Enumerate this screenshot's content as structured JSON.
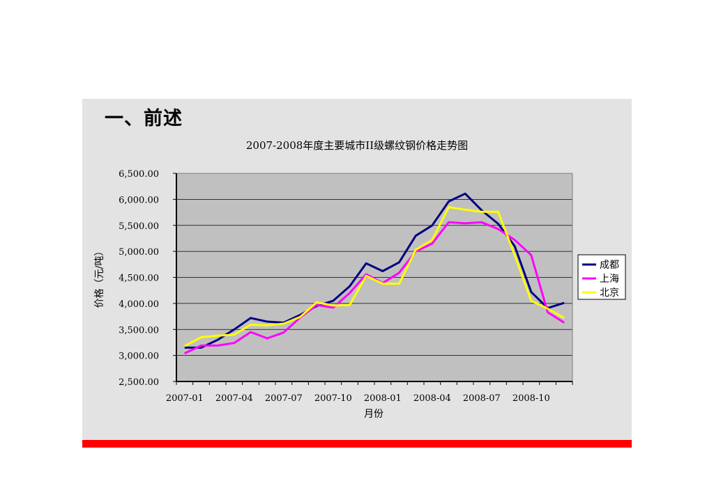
{
  "slide": {
    "section_title": "一、前述"
  },
  "chart_data": {
    "type": "line",
    "title": "2007-2008年度主要城市II级螺纹钢价格走势图",
    "xlabel": "月份",
    "ylabel": "价格（元/吨）",
    "ylim": [
      2500,
      6500
    ],
    "yticks": [
      2500,
      3000,
      3500,
      4000,
      4500,
      5000,
      5500,
      6000,
      6500
    ],
    "ytick_labels": [
      "2,500.00",
      "3,000.00",
      "3,500.00",
      "4,000.00",
      "4,500.00",
      "5,000.00",
      "5,500.00",
      "6,000.00",
      "6,500.00"
    ],
    "x_tick_labels": [
      {
        "index": 0,
        "label": "2007-01"
      },
      {
        "index": 3,
        "label": "2007-04"
      },
      {
        "index": 6,
        "label": "2007-07"
      },
      {
        "index": 9,
        "label": "2007-10"
      },
      {
        "index": 12,
        "label": "2008-01"
      },
      {
        "index": 15,
        "label": "2008-04"
      },
      {
        "index": 18,
        "label": "2008-07"
      },
      {
        "index": 21,
        "label": "2008-10"
      }
    ],
    "n_points": 24,
    "plot_background": "#c0c0c0",
    "grid": true,
    "legend_position": "right",
    "series": [
      {
        "name": "成都",
        "color": "#000080",
        "values": [
          3150,
          3150,
          3300,
          3500,
          3720,
          3650,
          3630,
          3780,
          3950,
          4050,
          4330,
          4770,
          4620,
          4790,
          5300,
          5500,
          5960,
          6110,
          5790,
          5530,
          5100,
          4220,
          3910,
          4010
        ]
      },
      {
        "name": "上海",
        "color": "#ff00ff",
        "values": [
          3040,
          3190,
          3190,
          3240,
          3450,
          3330,
          3440,
          3730,
          3970,
          3920,
          4200,
          4560,
          4390,
          4590,
          5000,
          5150,
          5560,
          5540,
          5560,
          5430,
          5220,
          4930,
          3830,
          3630
        ]
      },
      {
        "name": "北京",
        "color": "#ffff00",
        "values": [
          3180,
          3350,
          3380,
          3400,
          3590,
          3580,
          3610,
          3740,
          4020,
          3960,
          3970,
          4530,
          4380,
          4380,
          5030,
          5220,
          5850,
          5800,
          5760,
          5760,
          4930,
          4050,
          3900,
          3720
        ]
      }
    ]
  }
}
